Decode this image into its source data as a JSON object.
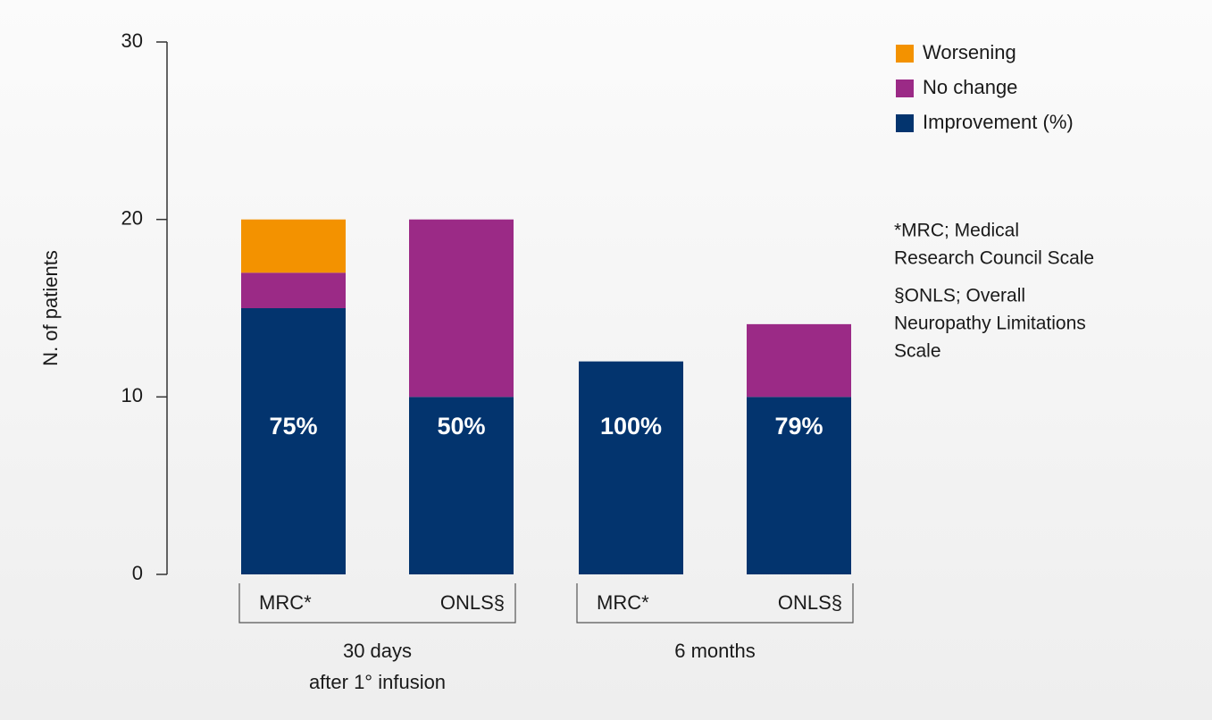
{
  "chart_data": {
    "type": "stacked_bar",
    "y_axis_label": "N. of patients",
    "categories": [
      "MRC*",
      "ONLS§",
      "MRC*",
      "ONLS§"
    ],
    "groups": [
      [
        "30 days",
        "after 1° infusion"
      ],
      [
        "6 months"
      ]
    ],
    "series": [
      {
        "name": "Improvement (%)",
        "color": "#03346e",
        "values": [
          15,
          10,
          12,
          10
        ],
        "annotations": [
          "75%",
          "50%",
          "100%",
          "79%"
        ]
      },
      {
        "name": "No change",
        "color": "#9b2a86",
        "values": [
          2,
          10,
          0,
          4.1
        ]
      },
      {
        "name": "Worsening",
        "color": "#f39200",
        "values": [
          3,
          0,
          0,
          0
        ]
      }
    ],
    "ylim": [
      0,
      30
    ],
    "yticks": [
      0,
      10,
      20,
      30
    ],
    "footnotes": [
      [
        "*MRC; Medical",
        "Research Council Scale"
      ],
      [
        "§ONLS; Overall",
        "Neuropathy Limitations",
        "Scale"
      ]
    ]
  }
}
